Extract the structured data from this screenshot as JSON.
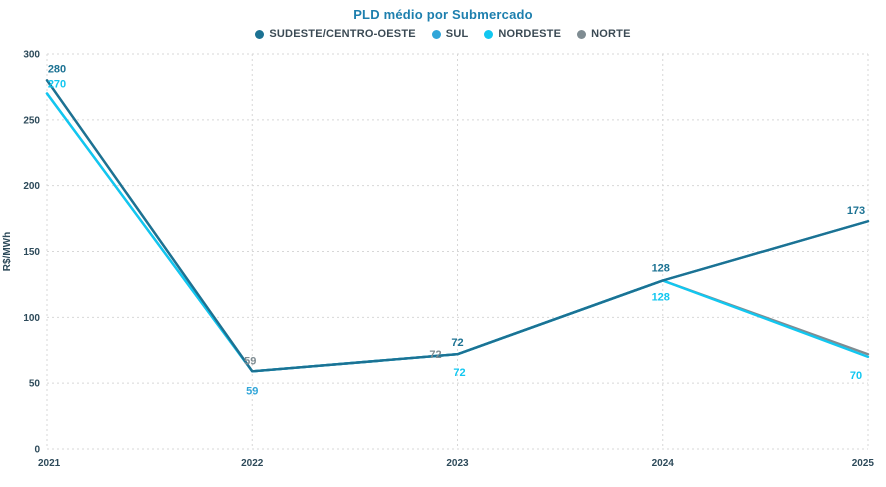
{
  "title": "PLD médio por Submercado",
  "legend": {
    "items": [
      {
        "label": "SUDESTE/CENTRO-OESTE",
        "color": "#1c7293"
      },
      {
        "label": "SUL",
        "color": "#31a6d9"
      },
      {
        "label": "NORDESTE",
        "color": "#12c7f0"
      },
      {
        "label": "NORTE",
        "color": "#7f8c92"
      }
    ]
  },
  "chart_data": {
    "type": "line",
    "title": "PLD médio por Submercado",
    "x": [
      2021,
      2022,
      2023,
      2024,
      2025
    ],
    "xlabel": "",
    "ylabel": "R$/MWh",
    "ylim": [
      0,
      300
    ],
    "yticks": [
      0,
      50,
      100,
      150,
      200,
      250,
      300
    ],
    "grid": "dashed",
    "legend_position": "top",
    "series": [
      {
        "name": "SUDESTE/CENTRO-OESTE",
        "color": "#1c7293",
        "values": [
          280,
          59,
          72,
          128,
          173
        ],
        "point_labels": [
          {
            "i": 0,
            "text": "280",
            "dx": 10,
            "dy": -8
          },
          {
            "i": 2,
            "text": "72",
            "dx": 0,
            "dy": -8
          },
          {
            "i": 3,
            "text": "128",
            "dx": -2,
            "dy": -9
          },
          {
            "i": 4,
            "text": "173",
            "dx": -12,
            "dy": -7
          }
        ]
      },
      {
        "name": "SUL",
        "color": "#31a6d9",
        "values": [
          270,
          59,
          72,
          128,
          173
        ],
        "point_labels": [
          {
            "i": 1,
            "text": "59",
            "dx": 0,
            "dy": 23
          }
        ]
      },
      {
        "name": "NORDESTE",
        "color": "#12c7f0",
        "values": [
          270,
          59,
          72,
          128,
          70
        ],
        "point_labels": [
          {
            "i": 0,
            "text": "270",
            "dx": 10,
            "dy": -6
          },
          {
            "i": 2,
            "text": "72",
            "dx": 2,
            "dy": 22
          },
          {
            "i": 3,
            "text": "128",
            "dx": -2,
            "dy": 20
          },
          {
            "i": 4,
            "text": "70",
            "dx": -12,
            "dy": 22
          }
        ]
      },
      {
        "name": "NORTE",
        "color": "#7f8c92",
        "values": [
          280,
          59,
          72,
          128,
          72
        ],
        "point_labels": [
          {
            "i": 1,
            "text": "59",
            "dx": -2,
            "dy": -7
          },
          {
            "i": 2,
            "text": "72",
            "dx": -22,
            "dy": 4
          }
        ]
      }
    ]
  }
}
